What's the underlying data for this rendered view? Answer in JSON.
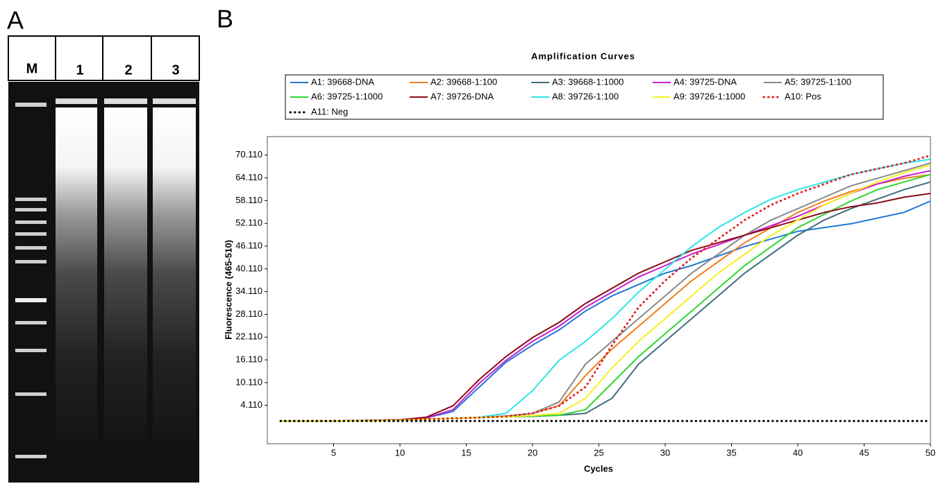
{
  "panel_labels": [
    "A",
    "B"
  ],
  "gel": {
    "lanes": [
      "M",
      "1",
      "2",
      "3"
    ]
  },
  "chart_data": {
    "type": "line",
    "title": "Amplification Curves",
    "x_label": "Cycles",
    "y_label": "Fluorescence (465-510)",
    "x": [
      1,
      5,
      10,
      12,
      14,
      16,
      18,
      20,
      22,
      24,
      26,
      28,
      30,
      32,
      34,
      36,
      38,
      40,
      42,
      44,
      46,
      48,
      50
    ],
    "xlim": [
      0,
      50
    ],
    "xticks": [
      5,
      10,
      15,
      20,
      25,
      30,
      35,
      40,
      45,
      50
    ],
    "ylim": [
      -6,
      75
    ],
    "yticks": [
      {
        "value": 4.11,
        "label": "4.110"
      },
      {
        "value": 10.11,
        "label": "10.110"
      },
      {
        "value": 16.11,
        "label": "16.110"
      },
      {
        "value": 22.11,
        "label": "22.110"
      },
      {
        "value": 28.11,
        "label": "28.110"
      },
      {
        "value": 34.11,
        "label": "34.110"
      },
      {
        "value": 40.11,
        "label": "40.110"
      },
      {
        "value": 46.11,
        "label": "46.110"
      },
      {
        "value": 52.11,
        "label": "52.110"
      },
      {
        "value": 58.11,
        "label": "58.110"
      },
      {
        "value": 64.11,
        "label": "64.110"
      },
      {
        "value": 70.11,
        "label": "70.110"
      }
    ],
    "series": [
      {
        "name": "A1: 39668-DNA",
        "color": "#1f77d4",
        "values": [
          0,
          0,
          0.3,
          0.8,
          2.5,
          9,
          15.5,
          20,
          24,
          29,
          33,
          36,
          39,
          41,
          43.5,
          46,
          48,
          50,
          51,
          52,
          53.5,
          55,
          58
        ]
      },
      {
        "name": "A2: 39668-1:100",
        "color": "#f07d1a",
        "values": [
          0,
          0,
          0.2,
          0.5,
          0.7,
          0.9,
          1.3,
          2,
          4,
          12,
          19,
          25,
          31,
          37,
          42,
          47,
          51,
          55,
          58,
          60.5,
          62.5,
          64,
          65
        ]
      },
      {
        "name": "A3: 39668-1:1000",
        "color": "#3d6e7c",
        "values": [
          0,
          0,
          0.2,
          0.5,
          0.7,
          0.9,
          1.1,
          1.2,
          1.5,
          2,
          6,
          15,
          21,
          27,
          33,
          39,
          44,
          49,
          53,
          56,
          58.5,
          61,
          63
        ]
      },
      {
        "name": "A4: 39725-DNA",
        "color": "#c81ed2",
        "values": [
          0,
          0,
          0.3,
          0.8,
          3,
          10,
          16,
          21,
          25,
          30,
          34,
          38,
          41,
          44,
          46.5,
          49,
          51.5,
          54,
          57,
          60,
          62.5,
          64.5,
          66
        ]
      },
      {
        "name": "A5: 39725-1:100",
        "color": "#888888",
        "values": [
          0,
          0,
          0.2,
          0.5,
          0.7,
          0.9,
          1.3,
          2,
          5,
          15,
          21,
          27,
          33,
          39,
          44,
          49,
          53,
          56,
          59,
          62,
          64,
          66,
          68
        ]
      },
      {
        "name": "A6: 39725-1:1000",
        "color": "#2ed62e",
        "values": [
          0,
          0,
          0.2,
          0.5,
          0.7,
          0.9,
          1.1,
          1.3,
          1.5,
          3,
          10,
          17,
          23,
          29,
          35,
          41,
          46,
          51,
          54.5,
          58,
          61,
          63,
          65
        ]
      },
      {
        "name": "A7: 39726-DNA",
        "color": "#8b0a14",
        "values": [
          0,
          0,
          0.3,
          1,
          4,
          11,
          17,
          22,
          26,
          31,
          35,
          39,
          42,
          45,
          47,
          49,
          51,
          53,
          55,
          56.5,
          57.5,
          59,
          60
        ]
      },
      {
        "name": "A8: 39726-1:100",
        "color": "#28e6e6",
        "values": [
          0,
          0,
          0.2,
          0.5,
          0.7,
          1,
          2,
          8,
          16,
          21,
          27,
          34,
          40,
          46,
          51,
          55,
          58.5,
          61,
          63,
          65,
          66.5,
          68,
          69
        ]
      },
      {
        "name": "A9: 39726-1:1000",
        "color": "#f5f01e",
        "values": [
          0,
          0,
          0.2,
          0.5,
          0.7,
          0.9,
          1.1,
          1.4,
          2,
          6,
          14,
          21,
          27,
          33,
          39,
          44,
          49,
          53,
          57,
          60,
          63,
          65.5,
          67.5
        ]
      },
      {
        "name": "A10: Pos",
        "color": "#e02020",
        "dash": "dotted",
        "values": [
          0,
          0,
          0.2,
          0.5,
          0.7,
          0.9,
          1.2,
          2,
          4,
          9,
          20,
          30,
          37,
          43,
          48,
          53,
          57,
          60,
          62.5,
          65,
          66.5,
          68,
          70
        ]
      },
      {
        "name": "A11: Neg",
        "color": "#000000",
        "dash": "dotted",
        "values": [
          0,
          0,
          0,
          0,
          0,
          0,
          0,
          0,
          0,
          0,
          0,
          0,
          0,
          0,
          0,
          0,
          0,
          0,
          0,
          0,
          0,
          0,
          0
        ]
      }
    ]
  }
}
